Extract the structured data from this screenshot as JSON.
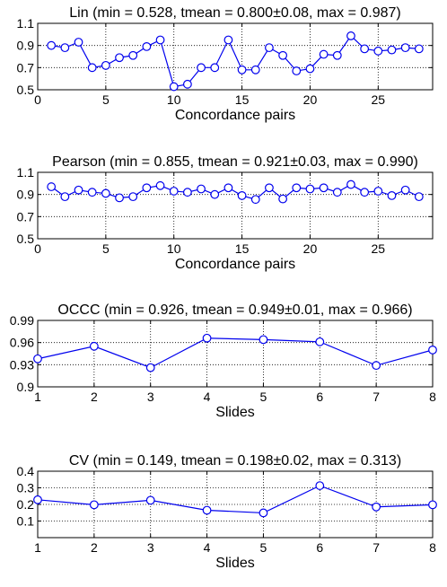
{
  "colors": {
    "series": "#0000ee",
    "axis": "#000000",
    "grid": "#000000",
    "background": "#ffffff"
  },
  "chart_data": [
    {
      "type": "line",
      "title": "Lin (min = 0.528, tmean = 0.800±0.08, max = 0.987)",
      "xlabel": "Concordance pairs",
      "ylabel": "",
      "xlim": [
        0,
        29
      ],
      "ylim": [
        0.5,
        1.1
      ],
      "xticks": [
        0,
        5,
        10,
        15,
        20,
        25
      ],
      "xtick_labels": [
        "0",
        "5",
        "10",
        "15",
        "20",
        "25"
      ],
      "yticks": [
        0.5,
        0.7,
        0.9,
        1.1
      ],
      "ytick_labels": [
        "0.5",
        "0.7",
        "0.9",
        "1.1"
      ],
      "grid": true,
      "x": [
        1,
        2,
        3,
        4,
        5,
        6,
        7,
        8,
        9,
        10,
        11,
        12,
        13,
        14,
        15,
        16,
        17,
        18,
        19,
        20,
        21,
        22,
        23,
        24,
        25,
        26,
        27,
        28
      ],
      "series": [
        {
          "values": [
            0.9,
            0.88,
            0.93,
            0.7,
            0.72,
            0.79,
            0.81,
            0.89,
            0.95,
            0.528,
            0.55,
            0.7,
            0.7,
            0.95,
            0.68,
            0.68,
            0.88,
            0.81,
            0.67,
            0.69,
            0.82,
            0.81,
            0.987,
            0.87,
            0.85,
            0.86,
            0.88,
            0.87
          ]
        }
      ]
    },
    {
      "type": "line",
      "title": "Pearson (min = 0.855, tmean = 0.921±0.03, max = 0.990)",
      "xlabel": "Concordance pairs",
      "ylabel": "",
      "xlim": [
        0,
        29
      ],
      "ylim": [
        0.5,
        1.1
      ],
      "xticks": [
        0,
        5,
        10,
        15,
        20,
        25
      ],
      "xtick_labels": [
        "0",
        "5",
        "10",
        "15",
        "20",
        "25"
      ],
      "yticks": [
        0.5,
        0.7,
        0.9,
        1.1
      ],
      "ytick_labels": [
        "0.5",
        "0.7",
        "0.9",
        "1.1"
      ],
      "grid": true,
      "x": [
        1,
        2,
        3,
        4,
        5,
        6,
        7,
        8,
        9,
        10,
        11,
        12,
        13,
        14,
        15,
        16,
        17,
        18,
        19,
        20,
        21,
        22,
        23,
        24,
        25,
        26,
        27,
        28
      ],
      "series": [
        {
          "values": [
            0.97,
            0.88,
            0.94,
            0.92,
            0.91,
            0.87,
            0.88,
            0.96,
            0.98,
            0.93,
            0.92,
            0.95,
            0.9,
            0.96,
            0.89,
            0.855,
            0.96,
            0.86,
            0.96,
            0.95,
            0.96,
            0.92,
            0.99,
            0.92,
            0.93,
            0.89,
            0.94,
            0.88
          ]
        }
      ]
    },
    {
      "type": "line",
      "title": "OCCC (min = 0.926, tmean = 0.949±0.01, max = 0.966)",
      "xlabel": "Slides",
      "ylabel": "",
      "xlim": [
        1,
        8
      ],
      "ylim": [
        0.9,
        0.99
      ],
      "xticks": [
        1,
        2,
        3,
        4,
        5,
        6,
        7,
        8
      ],
      "xtick_labels": [
        "1",
        "2",
        "3",
        "4",
        "5",
        "6",
        "7",
        "8"
      ],
      "yticks": [
        0.9,
        0.93,
        0.96,
        0.99
      ],
      "ytick_labels": [
        "0.9",
        "0.93",
        "0.96",
        "0.99"
      ],
      "grid": true,
      "x": [
        1,
        2,
        3,
        4,
        5,
        6,
        7,
        8
      ],
      "series": [
        {
          "values": [
            0.938,
            0.955,
            0.926,
            0.966,
            0.964,
            0.961,
            0.929,
            0.95
          ]
        }
      ]
    },
    {
      "type": "line",
      "title": "CV (min = 0.149, tmean = 0.198±0.02, max = 0.313)",
      "xlabel": "Slides",
      "ylabel": "",
      "xlim": [
        1,
        8
      ],
      "ylim": [
        0.0,
        0.4
      ],
      "xticks": [
        1,
        2,
        3,
        4,
        5,
        6,
        7,
        8
      ],
      "xtick_labels": [
        "1",
        "2",
        "3",
        "4",
        "5",
        "6",
        "7",
        "8"
      ],
      "yticks": [
        0.1,
        0.2,
        0.3,
        0.4
      ],
      "ytick_labels": [
        "0.1",
        "0.2",
        "0.3",
        "0.4"
      ],
      "grid": true,
      "x": [
        1,
        2,
        3,
        4,
        5,
        6,
        7,
        8
      ],
      "series": [
        {
          "values": [
            0.228,
            0.198,
            0.225,
            0.165,
            0.149,
            0.313,
            0.185,
            0.198
          ]
        }
      ]
    }
  ]
}
